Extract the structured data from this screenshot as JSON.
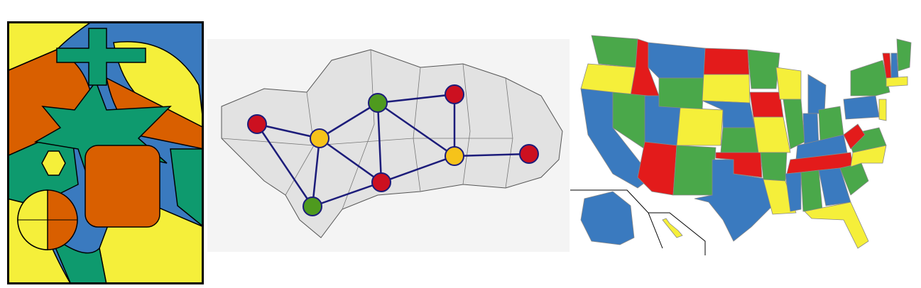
{
  "colors": {
    "red": "#e31b1b",
    "green": "#4aa84a",
    "blue": "#3a7abf",
    "yellow": "#f5ef3a",
    "orange": "#d95f00",
    "teal": "#0e9a6e",
    "navy": "#1c1c7a",
    "node_yellow": "#f6c31a",
    "node_green": "#4e9a1e",
    "node_red": "#cc1020",
    "map_bg": "#ececec"
  },
  "graph": {
    "nodes": [
      {
        "id": "n1",
        "color": "red"
      },
      {
        "id": "n2",
        "color": "yellow"
      },
      {
        "id": "n3",
        "color": "green"
      },
      {
        "id": "n4",
        "color": "red"
      },
      {
        "id": "n5",
        "color": "red"
      },
      {
        "id": "n6",
        "color": "yellow"
      },
      {
        "id": "n7",
        "color": "red"
      },
      {
        "id": "n8",
        "color": "green"
      }
    ],
    "edges": [
      [
        "n1",
        "n2"
      ],
      [
        "n1",
        "n8"
      ],
      [
        "n2",
        "n3"
      ],
      [
        "n2",
        "n8"
      ],
      [
        "n2",
        "n5"
      ],
      [
        "n3",
        "n4"
      ],
      [
        "n3",
        "n5"
      ],
      [
        "n3",
        "n6"
      ],
      [
        "n4",
        "n6"
      ],
      [
        "n5",
        "n6"
      ],
      [
        "n5",
        "n8"
      ],
      [
        "n6",
        "n7"
      ]
    ]
  },
  "us_map": {
    "state_colors": [
      "blue",
      "green",
      "yellow",
      "red"
    ]
  }
}
